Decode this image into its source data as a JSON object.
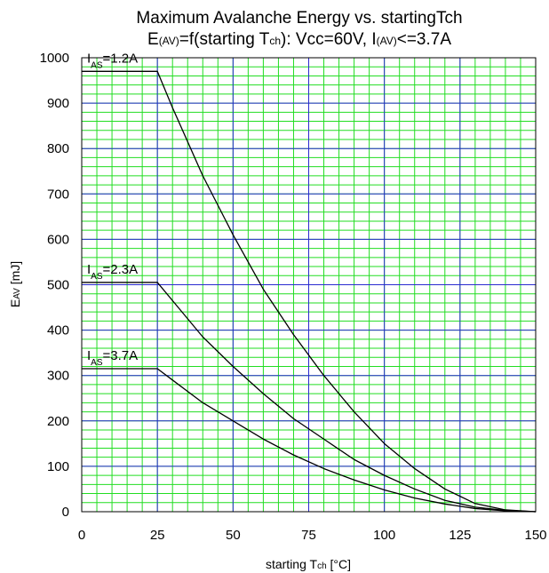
{
  "chart_data": {
    "type": "line",
    "title": {
      "line1": "Maximum Avalanche Energy vs. startingTch",
      "line2": {
        "e": "E",
        "e_sub": "(AV)",
        "mid": "=f(starting T",
        "t_sub": "ch",
        "mid2": "): Vcc=60V, I",
        "i_sub": "(AV)",
        "end": "<=3.7A"
      }
    },
    "xlabel": {
      "main": "starting T",
      "sub": "ch",
      "unit": " [°C]"
    },
    "ylabel": {
      "main": "E",
      "sub": "AV",
      "unit": " [mJ]"
    },
    "xlim": [
      0,
      150
    ],
    "ylim": [
      0,
      1000
    ],
    "x_ticks": [
      "0",
      "25",
      "50",
      "75",
      "100",
      "125",
      "150"
    ],
    "y_ticks": [
      "0",
      "100",
      "200",
      "300",
      "400",
      "500",
      "600",
      "700",
      "800",
      "900",
      "1000"
    ],
    "grid": true,
    "colors": {
      "major_grid": "#2a2ad0",
      "minor_grid": "#22dd22",
      "curve": "#000000"
    },
    "series": [
      {
        "name": "I_AS=1.2A",
        "label": {
          "main": "I",
          "sub": "AS",
          "value": "=1.2A"
        },
        "x": [
          0,
          25,
          30,
          40,
          50,
          60,
          70,
          80,
          90,
          100,
          110,
          120,
          130,
          140,
          150
        ],
        "y": [
          970,
          970,
          890,
          740,
          610,
          490,
          390,
          300,
          220,
          150,
          95,
          50,
          18,
          4,
          0
        ]
      },
      {
        "name": "I_AS=2.3A",
        "label": {
          "main": "I",
          "sub": "AS",
          "value": "=2.3A"
        },
        "x": [
          0,
          25,
          30,
          40,
          50,
          60,
          70,
          80,
          90,
          100,
          110,
          120,
          130,
          140,
          150
        ],
        "y": [
          505,
          505,
          465,
          385,
          320,
          260,
          205,
          160,
          115,
          80,
          50,
          25,
          10,
          3,
          0
        ]
      },
      {
        "name": "I_AS=3.7A",
        "label": {
          "main": "I",
          "sub": "AS",
          "value": "=3.7A"
        },
        "x": [
          0,
          25,
          30,
          40,
          50,
          60,
          70,
          80,
          90,
          100,
          110,
          120,
          130,
          140,
          150
        ],
        "y": [
          315,
          315,
          290,
          240,
          200,
          160,
          125,
          95,
          70,
          48,
          30,
          17,
          7,
          2,
          0
        ]
      }
    ]
  }
}
